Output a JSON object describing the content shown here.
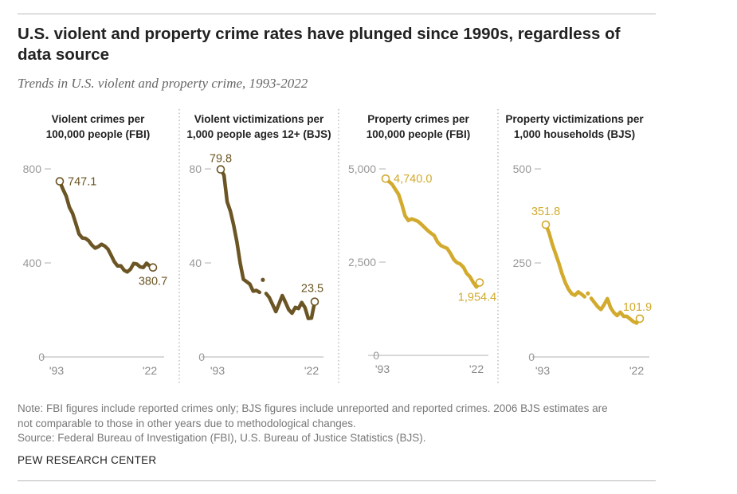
{
  "title": "U.S. violent and property crime rates have plunged since 1990s, regardless of data source",
  "subtitle": "Trends in U.S. violent and property crime, 1993-2022",
  "colors": {
    "violent": "#6b5524",
    "property": "#d2aa2e",
    "axis": "#b0b0b0",
    "tick_text": "#999999"
  },
  "chart_data": [
    {
      "type": "line",
      "title": "Violent crimes per 100,000 people (FBI)",
      "color_key": "violent",
      "x": [
        1993,
        1994,
        1995,
        1996,
        1997,
        1998,
        1999,
        2000,
        2001,
        2002,
        2003,
        2004,
        2005,
        2006,
        2007,
        2008,
        2009,
        2010,
        2011,
        2012,
        2013,
        2014,
        2015,
        2016,
        2017,
        2018,
        2019,
        2020,
        2021,
        2022
      ],
      "values": [
        747.1,
        713.6,
        684.5,
        636.6,
        611.0,
        567.6,
        523.0,
        506.5,
        504.5,
        494.4,
        475.8,
        463.2,
        469.0,
        479.3,
        471.8,
        458.6,
        431.9,
        404.5,
        387.1,
        387.8,
        369.1,
        361.6,
        373.7,
        397.5,
        394.9,
        383.4,
        380.8,
        398.5,
        387.0,
        380.7
      ],
      "break_years": [],
      "ylim": [
        0,
        800
      ],
      "yticks": [
        "0",
        "400",
        "800"
      ],
      "ytick_values": [
        0,
        400,
        800
      ],
      "xtick_labels": [
        "'93",
        "'22"
      ],
      "start_label": "747.1",
      "end_label": "380.7"
    },
    {
      "type": "line",
      "title": "Violent victimizations per 1,000 people ages 12+ (BJS)",
      "color_key": "violent",
      "x": [
        1993,
        1994,
        1995,
        1996,
        1997,
        1998,
        1999,
        2000,
        2001,
        2002,
        2003,
        2004,
        2005,
        2006,
        2007,
        2008,
        2009,
        2010,
        2011,
        2012,
        2013,
        2014,
        2015,
        2016,
        2017,
        2018,
        2019,
        2020,
        2021,
        2022
      ],
      "values": [
        79.8,
        77.4,
        66.0,
        62.0,
        56.0,
        49.0,
        40.0,
        33.0,
        32.0,
        31.0,
        28.0,
        28.3,
        27.5,
        32.8,
        27.0,
        25.3,
        22.3,
        19.3,
        22.6,
        26.1,
        23.2,
        20.1,
        18.6,
        21.1,
        20.6,
        23.2,
        21.0,
        16.4,
        16.5,
        23.5
      ],
      "break_years": [
        2006
      ],
      "ylim": [
        0,
        80
      ],
      "yticks": [
        "0",
        "40",
        "80"
      ],
      "ytick_values": [
        0,
        40,
        80
      ],
      "xtick_labels": [
        "'93",
        "'22"
      ],
      "start_label": "79.8",
      "end_label": "23.5"
    },
    {
      "type": "line",
      "title": "Property crimes per 100,000 people (FBI)",
      "color_key": "property",
      "x": [
        1993,
        1994,
        1995,
        1996,
        1997,
        1998,
        1999,
        2000,
        2001,
        2002,
        2003,
        2004,
        2005,
        2006,
        2007,
        2008,
        2009,
        2010,
        2011,
        2012,
        2013,
        2014,
        2015,
        2016,
        2017,
        2018,
        2019,
        2020,
        2021,
        2022
      ],
      "values": [
        4740.0,
        4660.2,
        4590.5,
        4451.0,
        4316.3,
        4052.5,
        3743.6,
        3618.3,
        3658.1,
        3630.6,
        3591.2,
        3514.1,
        3431.5,
        3346.6,
        3276.4,
        3214.6,
        3041.3,
        2945.9,
        2905.4,
        2868.0,
        2733.6,
        2574.1,
        2487.0,
        2451.6,
        2362.2,
        2199.5,
        2109.9,
        1958.2,
        1832.3,
        1954.4
      ],
      "break_years": [],
      "ylim": [
        0,
        5000
      ],
      "yticks": [
        "0",
        "2,500",
        "5,000"
      ],
      "ytick_values": [
        0,
        2500,
        5000
      ],
      "xtick_labels": [
        "'93",
        "'22"
      ],
      "start_label": "4,740.0",
      "end_label": "1,954.4"
    },
    {
      "type": "line",
      "title": "Property victimizations per 1,000 households (BJS)",
      "color_key": "property",
      "x": [
        1993,
        1994,
        1995,
        1996,
        1997,
        1998,
        1999,
        2000,
        2001,
        2002,
        2003,
        2004,
        2005,
        2006,
        2007,
        2008,
        2009,
        2010,
        2011,
        2012,
        2013,
        2014,
        2015,
        2016,
        2017,
        2018,
        2019,
        2020,
        2021,
        2022
      ],
      "values": [
        351.8,
        330.0,
        300.0,
        275.0,
        250.0,
        222.0,
        198.0,
        180.0,
        168.0,
        164.0,
        173.0,
        167.0,
        160.0,
        169.0,
        156.0,
        145.0,
        134.0,
        126.0,
        139.0,
        155.0,
        131.0,
        118.0,
        110.0,
        119.0,
        108.0,
        108.0,
        101.0,
        94.0,
        90.0,
        101.9
      ],
      "break_years": [
        2006
      ],
      "ylim": [
        0,
        500
      ],
      "yticks": [
        "0",
        "250",
        "500"
      ],
      "ytick_values": [
        0,
        250,
        500
      ],
      "xtick_labels": [
        "'93",
        "'22"
      ],
      "start_label": "351.8",
      "end_label": "101.9"
    }
  ],
  "panel_headers": [
    [
      "Violent crimes per",
      "100,000 people (FBI)"
    ],
    [
      "Violent victimizations per",
      "1,000 people ages 12+ (BJS)"
    ],
    [
      "Property crimes per",
      "100,000 people (FBI)"
    ],
    [
      "Property victimizations per",
      "1,000 households (BJS)"
    ]
  ],
  "note_lines": [
    "Note: FBI figures include reported crimes only; BJS figures include unreported and reported crimes. 2006 BJS estimates are",
    "not comparable to those in other years due to methodological changes.",
    "Source: Federal Bureau of Investigation (FBI), U.S. Bureau of Justice Statistics (BJS)."
  ],
  "footer": "PEW RESEARCH CENTER"
}
